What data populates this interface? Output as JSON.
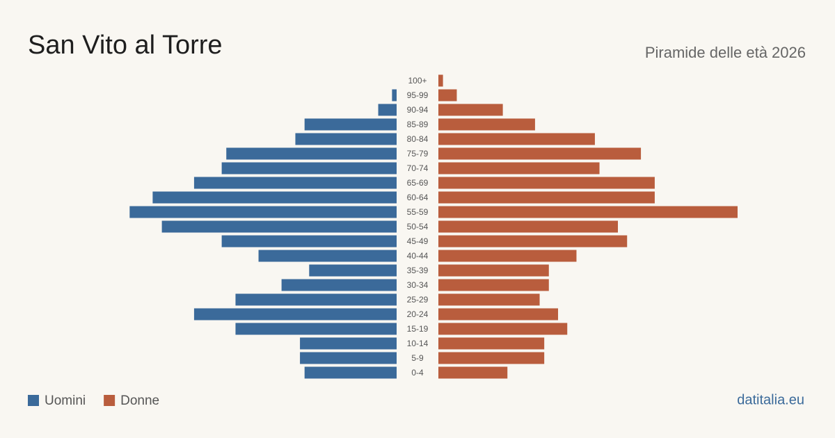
{
  "chart_data": {
    "type": "pyramid",
    "title": "San Vito al Torre",
    "subtitle": "Piramide delle età 2026",
    "source": "datitalia.eu",
    "categories": [
      "100+",
      "95-99",
      "90-94",
      "85-89",
      "80-84",
      "75-79",
      "70-74",
      "65-69",
      "60-64",
      "55-59",
      "50-54",
      "45-49",
      "40-44",
      "35-39",
      "30-34",
      "25-29",
      "20-24",
      "15-19",
      "10-14",
      "5-9",
      "0-4"
    ],
    "series": [
      {
        "name": "Uomini",
        "color": "#3b6a9a",
        "values": [
          0,
          1,
          4,
          20,
          22,
          37,
          38,
          44,
          53,
          58,
          51,
          38,
          30,
          19,
          25,
          35,
          44,
          35,
          21,
          21,
          20
        ]
      },
      {
        "name": "Donne",
        "color": "#b95d3d",
        "values": [
          1,
          4,
          14,
          21,
          34,
          44,
          35,
          47,
          47,
          65,
          39,
          41,
          30,
          24,
          24,
          22,
          26,
          28,
          23,
          23,
          15
        ]
      }
    ]
  }
}
